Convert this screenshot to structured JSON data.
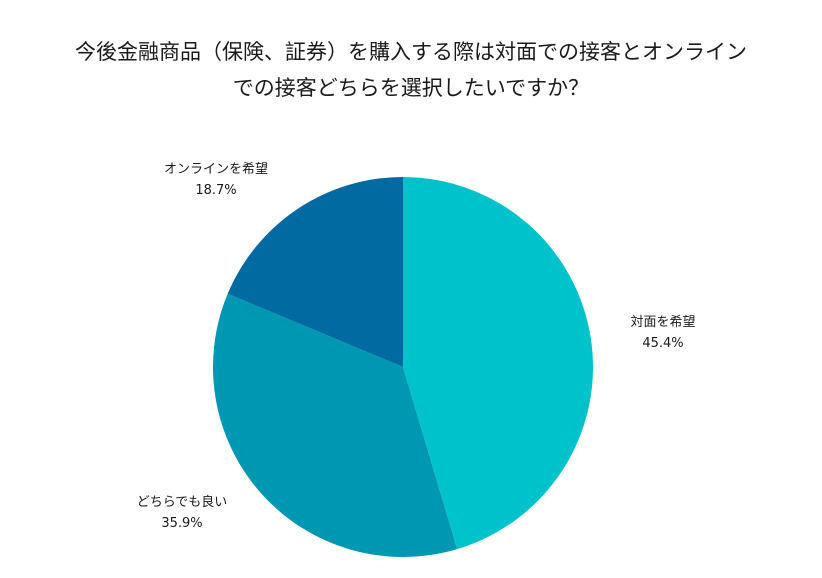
{
  "chart_data": {
    "type": "pie",
    "title_lines": [
      "今後金融商品（保険、証券）を購入する際は対面での接客とオンライン",
      "での接客どちらを選択したいですか？"
    ],
    "slices": [
      {
        "name": "対面を希望",
        "value": 45.4,
        "value_label": "45.4%",
        "color": "#00c2cb"
      },
      {
        "name": "どちらでも良い",
        "value": 35.9,
        "value_label": "35.9%",
        "color": "#0097b2"
      },
      {
        "name": "オンラインを希望",
        "value": 18.7,
        "value_label": "18.7%",
        "color": "#006aa1"
      }
    ],
    "start_angle": "12 o'clock",
    "direction": "clockwise",
    "legend": "none"
  }
}
